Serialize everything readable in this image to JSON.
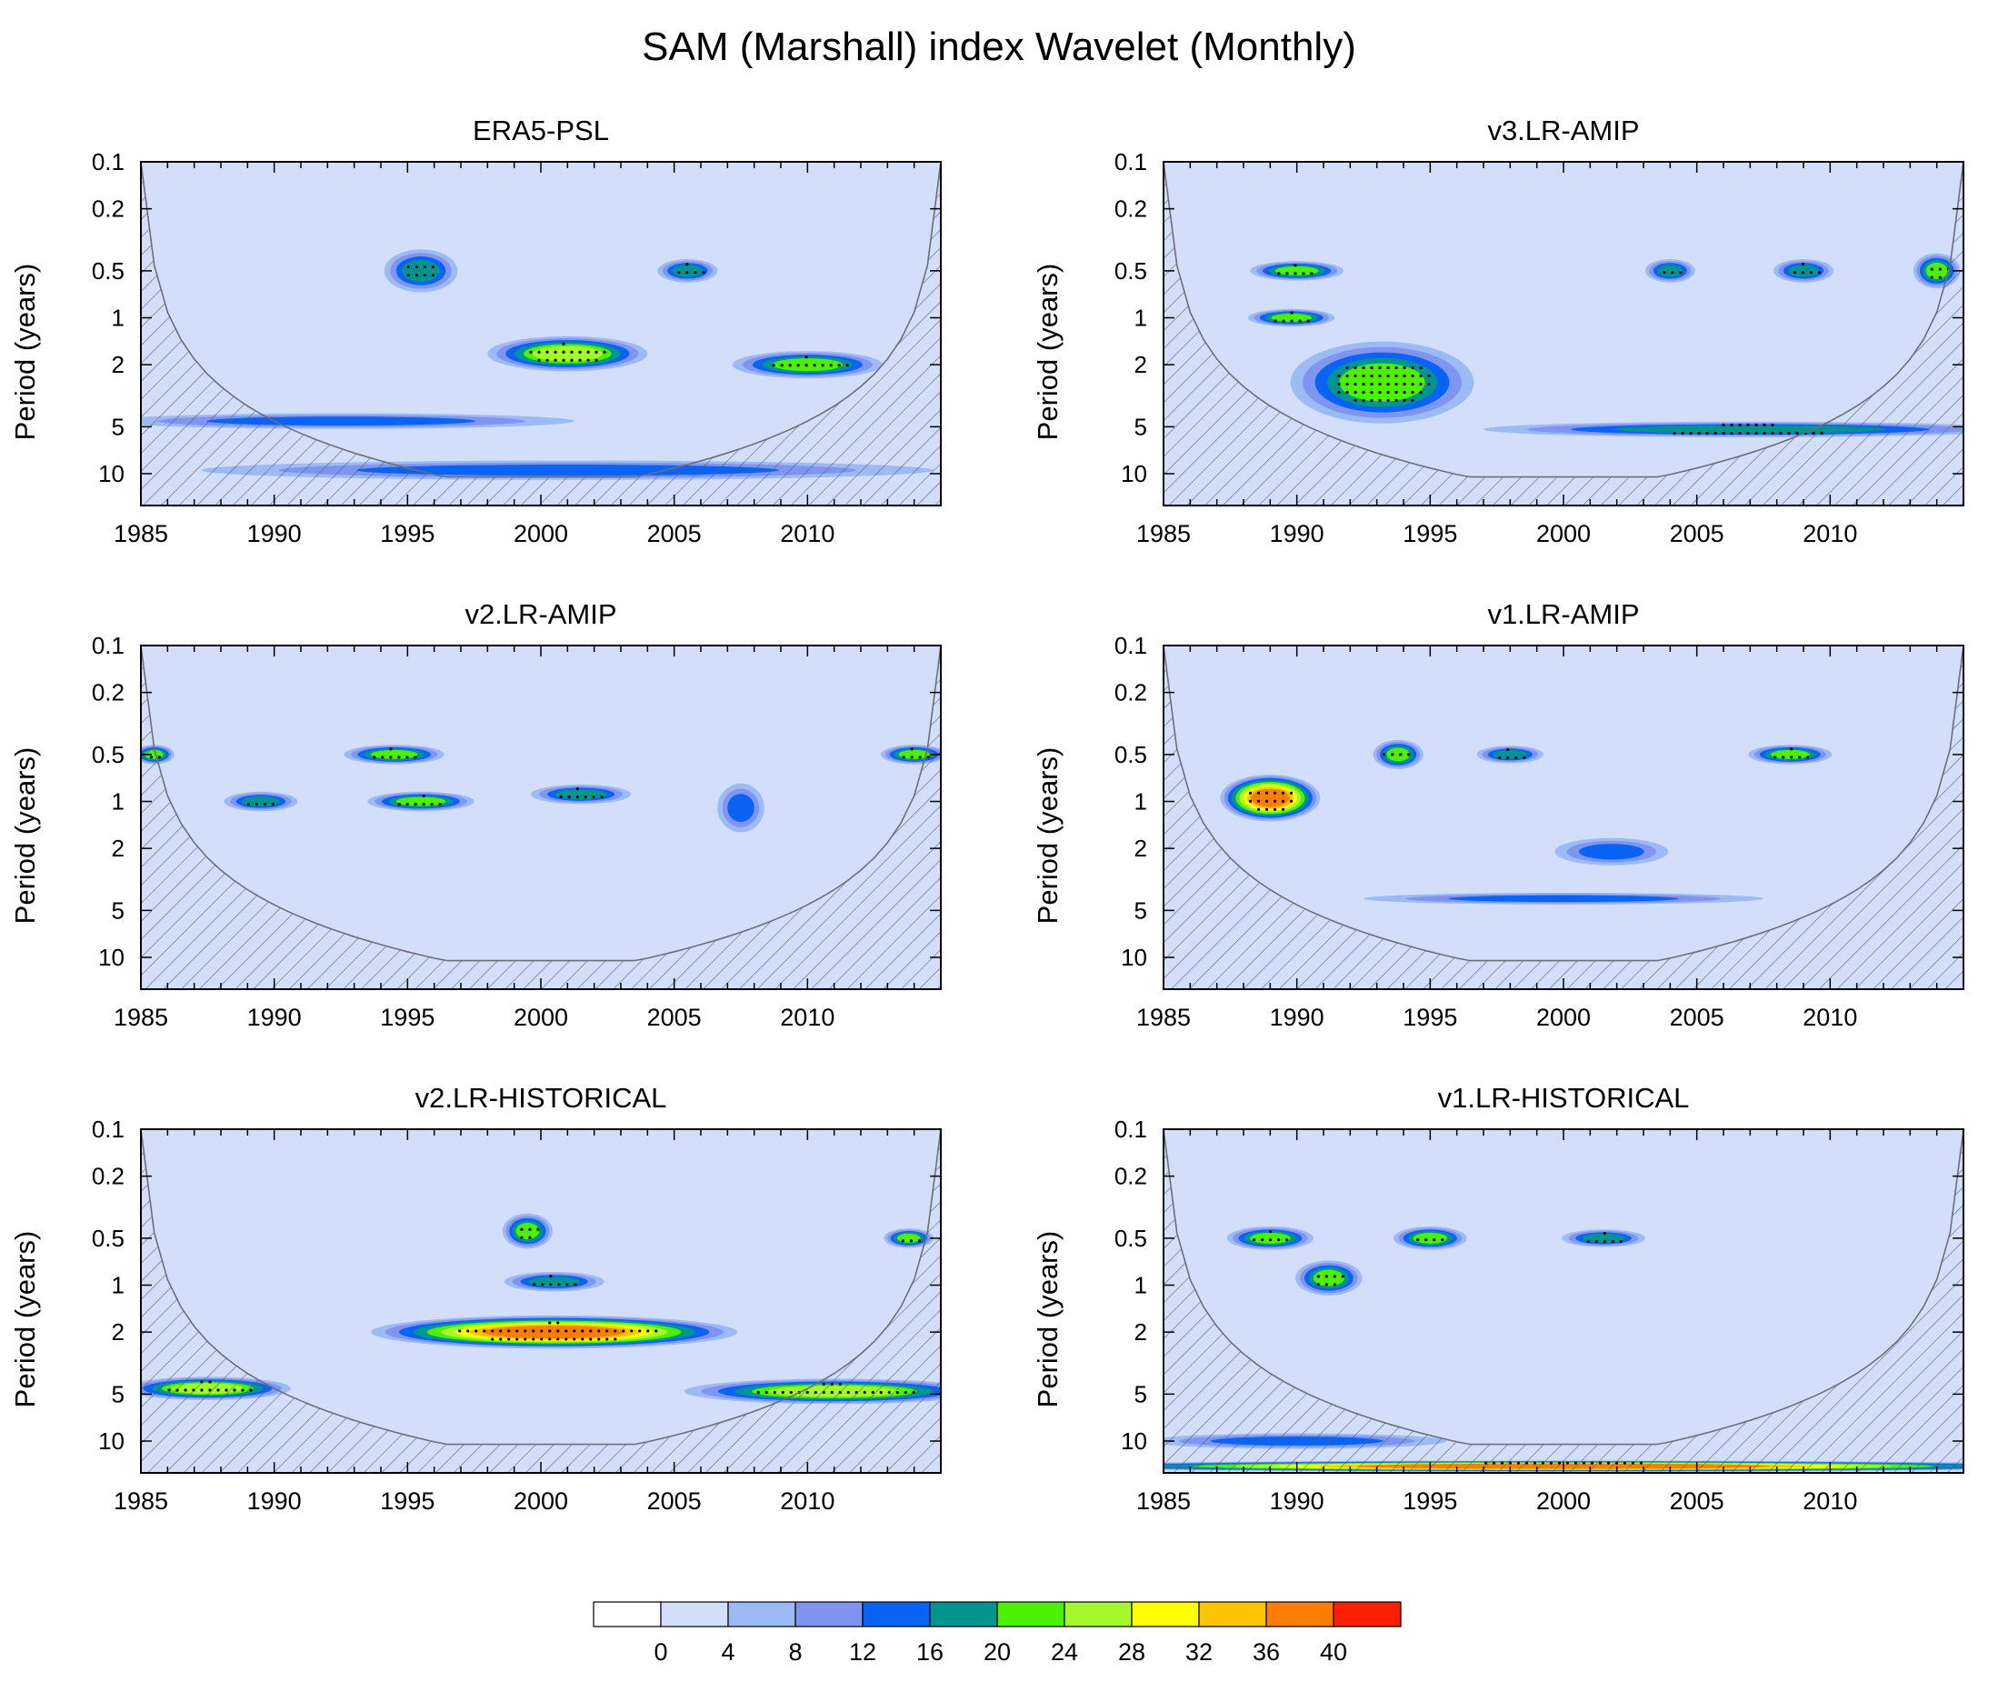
{
  "chart_data": {
    "type": "heatmap",
    "title": "SAM (Marshall) index Wavelet (Monthly)",
    "xlim": [
      1985,
      2015
    ],
    "xticks": [
      1985,
      1990,
      1995,
      2000,
      2005,
      2010
    ],
    "ylabel": "Period (years)",
    "ylim": [
      0.1,
      16
    ],
    "yscale": "log",
    "yticks": [
      0.1,
      0.2,
      0.5,
      1,
      2,
      5,
      10
    ],
    "colorbar": {
      "levels": [
        0,
        4,
        8,
        12,
        16,
        20,
        24,
        28,
        32,
        36,
        40
      ],
      "colors": [
        "#ffffff",
        "#d2defa",
        "#9cbaf4",
        "#8095f0",
        "#0964f5",
        "#00968f",
        "#4cf000",
        "#a5f82c",
        "#ffff00",
        "#ffc600",
        "#ff7e00",
        "#ff1e00"
      ]
    },
    "panels": [
      {
        "title": "ERA5-PSL",
        "features": [
          {
            "year": 2001,
            "period": 1.7,
            "power": 26,
            "width_years": 4.8,
            "height_decades": 0.18
          },
          {
            "year": 2010,
            "period": 2.0,
            "power": 24,
            "width_years": 4.5,
            "height_decades": 0.14
          },
          {
            "year": 1995.5,
            "period": 0.5,
            "power": 20,
            "width_years": 2.2,
            "height_decades": 0.22
          },
          {
            "year": 2005.5,
            "period": 0.5,
            "power": 18,
            "width_years": 1.8,
            "height_decades": 0.12
          },
          {
            "year": 1992.5,
            "period": 4.6,
            "power": 15,
            "width_years": 14,
            "height_decades": 0.08
          },
          {
            "year": 2001,
            "period": 9.5,
            "power": 15,
            "width_years": 22,
            "height_decades": 0.1
          }
        ]
      },
      {
        "title": "v3.LR-AMIP",
        "features": [
          {
            "year": 1993.2,
            "period": 2.6,
            "power": 25,
            "width_years": 5.5,
            "height_decades": 0.42
          },
          {
            "year": 1990,
            "period": 0.5,
            "power": 24,
            "width_years": 2.8,
            "height_decades": 0.1
          },
          {
            "year": 1989.8,
            "period": 1.0,
            "power": 24,
            "width_years": 2.6,
            "height_decades": 0.09
          },
          {
            "year": 2014,
            "period": 0.5,
            "power": 22,
            "width_years": 1.4,
            "height_decades": 0.18
          },
          {
            "year": 2004,
            "period": 0.5,
            "power": 20,
            "width_years": 1.5,
            "height_decades": 0.12
          },
          {
            "year": 2009,
            "period": 0.5,
            "power": 18,
            "width_years": 1.8,
            "height_decades": 0.12
          },
          {
            "year": 2007,
            "period": 5.2,
            "power": 18,
            "width_years": 16,
            "height_decades": 0.08
          }
        ]
      },
      {
        "title": "v2.LR-AMIP",
        "features": [
          {
            "year": 1995.5,
            "period": 1.0,
            "power": 24,
            "width_years": 3.2,
            "height_decades": 0.1
          },
          {
            "year": 1994.5,
            "period": 0.5,
            "power": 24,
            "width_years": 3.0,
            "height_decades": 0.1
          },
          {
            "year": 1989.5,
            "period": 1.0,
            "power": 20,
            "width_years": 2.2,
            "height_decades": 0.1
          },
          {
            "year": 2001.5,
            "period": 0.9,
            "power": 18,
            "width_years": 3.0,
            "height_decades": 0.1
          },
          {
            "year": 2007.5,
            "period": 1.1,
            "power": 17,
            "width_years": 1.4,
            "height_decades": 0.25
          },
          {
            "year": 1985.5,
            "period": 0.5,
            "power": 24,
            "width_years": 1.2,
            "height_decades": 0.1
          },
          {
            "year": 2014,
            "period": 0.5,
            "power": 24,
            "width_years": 2.0,
            "height_decades": 0.1
          }
        ]
      },
      {
        "title": "v1.LR-AMIP",
        "features": [
          {
            "year": 1989,
            "period": 0.95,
            "power": 40,
            "width_years": 3.0,
            "height_decades": 0.24
          },
          {
            "year": 1993.8,
            "period": 0.5,
            "power": 25,
            "width_years": 1.5,
            "height_decades": 0.15
          },
          {
            "year": 2008.5,
            "period": 0.5,
            "power": 22,
            "width_years": 2.5,
            "height_decades": 0.1
          },
          {
            "year": 1998,
            "period": 0.5,
            "power": 20,
            "width_years": 2.0,
            "height_decades": 0.09
          },
          {
            "year": 2001.8,
            "period": 2.1,
            "power": 15,
            "width_years": 3.4,
            "height_decades": 0.14
          },
          {
            "year": 2000,
            "period": 4.2,
            "power": 14,
            "width_years": 12,
            "height_decades": 0.06
          }
        ]
      },
      {
        "title": "v2.LR-HISTORICAL",
        "features": [
          {
            "year": 2000.5,
            "period": 2.0,
            "power": 41,
            "width_years": 11,
            "height_decades": 0.17
          },
          {
            "year": 2011,
            "period": 4.8,
            "power": 29,
            "width_years": 9,
            "height_decades": 0.13
          },
          {
            "year": 1987.5,
            "period": 4.6,
            "power": 28,
            "width_years": 5,
            "height_decades": 0.12
          },
          {
            "year": 2000.5,
            "period": 0.95,
            "power": 21,
            "width_years": 3.0,
            "height_decades": 0.1
          },
          {
            "year": 1999.5,
            "period": 0.45,
            "power": 24,
            "width_years": 1.5,
            "height_decades": 0.18
          },
          {
            "year": 2013.8,
            "period": 0.5,
            "power": 24,
            "width_years": 1.5,
            "height_decades": 0.1
          }
        ]
      },
      {
        "title": "v1.LR-HISTORICAL",
        "features": [
          {
            "year": 2000,
            "period": 14.5,
            "power": 40,
            "width_years": 32,
            "height_decades": 0.02
          },
          {
            "year": 1991.2,
            "period": 0.9,
            "power": 24,
            "width_years": 2.0,
            "height_decades": 0.18
          },
          {
            "year": 1995,
            "period": 0.5,
            "power": 25,
            "width_years": 2.2,
            "height_decades": 0.12
          },
          {
            "year": 1989,
            "period": 0.5,
            "power": 24,
            "width_years": 2.6,
            "height_decades": 0.12
          },
          {
            "year": 1990,
            "period": 10,
            "power": 16,
            "width_years": 9,
            "height_decades": 0.08
          },
          {
            "year": 2001.5,
            "period": 0.5,
            "power": 18,
            "width_years": 2.5,
            "height_decades": 0.09
          }
        ]
      }
    ]
  }
}
